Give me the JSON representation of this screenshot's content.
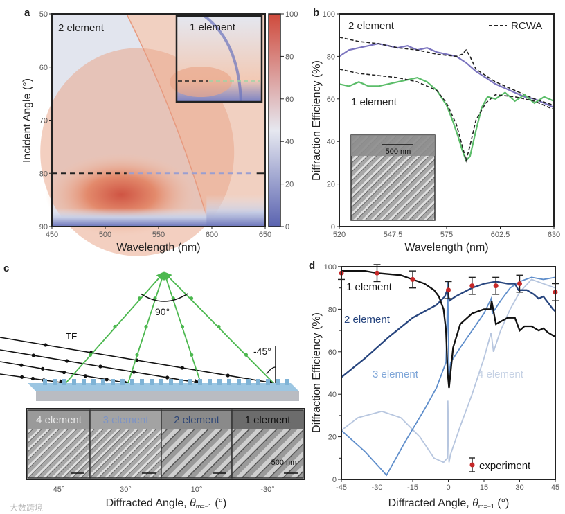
{
  "watermark": "大数跨境",
  "chart_data": [
    {
      "panel": "a",
      "type": "heatmap",
      "xlabel": "Wavelength (nm)",
      "ylabel": "Incident Angle (°)",
      "xlim": [
        450,
        650
      ],
      "ylim": [
        50,
        90
      ],
      "xticks": [
        "450",
        "500",
        "550",
        "600",
        "650"
      ],
      "yticks": [
        "50",
        "60",
        "70",
        "80",
        "90"
      ],
      "colorbar": {
        "range": [
          0,
          100
        ],
        "ticks": [
          "0",
          "20",
          "40",
          "60",
          "80",
          "100"
        ],
        "colors": [
          "#5a63b0",
          "#e6e8f0",
          "#cf4a3c"
        ]
      },
      "annotations": [
        "2 element",
        "1 element"
      ],
      "dashed_line_angle": 80,
      "peak": {
        "wavelength": 515,
        "angle": 84,
        "value": 90
      }
    },
    {
      "panel": "b",
      "type": "line",
      "xlabel": "Wavelength (nm)",
      "ylabel": "Diffraction Efficiency (%)",
      "xlim": [
        520,
        630
      ],
      "ylim": [
        0,
        100
      ],
      "xticks": [
        "520",
        "547.5",
        "575",
        "602.5",
        "630"
      ],
      "yticks": [
        "0",
        "20",
        "40",
        "60",
        "80",
        "100"
      ],
      "legend": "RCWA",
      "annotations": [
        "2 element",
        "1 element"
      ],
      "inset_scale": "500 nm",
      "series": [
        {
          "name": "2 element",
          "color": "#7b74bf",
          "x": [
            520,
            525,
            530,
            535,
            540,
            545,
            550,
            555,
            560,
            565,
            570,
            575,
            580,
            585,
            590,
            595,
            600,
            605,
            610,
            615,
            620,
            625,
            630
          ],
          "y": [
            80,
            83,
            84,
            85,
            86,
            85,
            84,
            85,
            83,
            84,
            82,
            81,
            80,
            77,
            73,
            70,
            67,
            65,
            63,
            61,
            60,
            58,
            56
          ]
        },
        {
          "name": "2 element RCWA",
          "color": "#222222",
          "dashed": true,
          "x": [
            520,
            530,
            540,
            550,
            560,
            570,
            580,
            583,
            585,
            587,
            590,
            600,
            610,
            620,
            630
          ],
          "y": [
            89,
            87,
            86,
            84,
            83,
            81,
            80,
            81,
            83,
            80,
            74,
            68,
            64,
            60,
            57
          ]
        },
        {
          "name": "1 element",
          "color": "#5cbd6a",
          "x": [
            520,
            525,
            530,
            535,
            540,
            545,
            550,
            555,
            560,
            565,
            570,
            575,
            578,
            581,
            583,
            585,
            587,
            590,
            593,
            596,
            600,
            605,
            610,
            615,
            620,
            625,
            630
          ],
          "y": [
            67,
            66,
            68,
            66,
            66,
            67,
            68,
            69,
            70,
            68,
            64,
            57,
            50,
            42,
            36,
            31,
            33,
            45,
            56,
            61,
            60,
            63,
            59,
            62,
            58,
            61,
            59
          ]
        },
        {
          "name": "1 element RCWA",
          "color": "#222222",
          "dashed": true,
          "x": [
            520,
            530,
            540,
            550,
            560,
            570,
            575,
            580,
            583,
            585,
            587,
            590,
            595,
            600,
            610,
            620,
            630
          ],
          "y": [
            74,
            72,
            71,
            70,
            68,
            64,
            58,
            48,
            38,
            31,
            38,
            50,
            58,
            62,
            61,
            59,
            55
          ]
        }
      ]
    },
    {
      "panel": "c",
      "type": "diagram",
      "labels": {
        "polarization": "TE",
        "apex_angle": "90°",
        "incident_angle": "-45°",
        "xlabel_prefix": "Diffracted Angle, ",
        "xlabel_symbol": "θ",
        "xlabel_sub": "m=−1",
        "xlabel_suffix": " (°)"
      },
      "sem_images": [
        {
          "label": "4 element",
          "angle": "45°"
        },
        {
          "label": "3 element",
          "angle": "30°"
        },
        {
          "label": "2 element",
          "angle": "10°"
        },
        {
          "label": "1 element",
          "angle": "-30°"
        }
      ],
      "scale_bar": "500 nm"
    },
    {
      "panel": "d",
      "type": "line",
      "xlabel_prefix": "Diffracted Angle, ",
      "xlabel_symbol": "θ",
      "xlabel_sub": "m=−1",
      "xlabel_suffix": " (°)",
      "ylabel": "Diffraction Efficiency (%)",
      "xlim": [
        -45,
        45
      ],
      "ylim": [
        0,
        100
      ],
      "xticks": [
        "-45",
        "-30",
        "-15",
        "0",
        "15",
        "30",
        "45"
      ],
      "yticks": [
        "0",
        "20",
        "40",
        "60",
        "80",
        "100"
      ],
      "legend": "experiment",
      "series": [
        {
          "name": "1 element",
          "color": "#111111",
          "x": [
            -45,
            -35,
            -30,
            -20,
            -15,
            -10,
            -6,
            -4,
            -2,
            -1,
            -0.3,
            0.3,
            2,
            5,
            10,
            15,
            17.8,
            18.2,
            20,
            25,
            28,
            30,
            32,
            35,
            38,
            40,
            42,
            45
          ],
          "y": [
            98,
            98,
            97,
            96,
            94,
            92,
            89,
            86,
            80,
            70,
            50,
            43,
            62,
            73,
            78,
            80,
            80,
            84,
            73,
            76,
            76,
            70,
            72,
            72,
            70,
            71,
            69,
            67
          ]
        },
        {
          "name": "2 element",
          "color": "#27457e",
          "x": [
            -45,
            -35,
            -25,
            -15,
            -5,
            -1.5,
            -0.5,
            0.5,
            3,
            10,
            15,
            20,
            25,
            28,
            29.5,
            30.5,
            33,
            36,
            38,
            40,
            42,
            44,
            45
          ],
          "y": [
            48,
            57,
            67,
            76,
            82,
            86,
            89,
            84,
            86,
            90,
            92,
            93,
            92,
            92,
            89,
            89,
            89,
            87,
            85,
            86,
            83,
            80,
            79
          ]
        },
        {
          "name": "3 element",
          "color": "#5f8ecb",
          "x": [
            -45,
            -35,
            -26,
            -18,
            -10,
            -5,
            -2,
            -1,
            -0.6,
            -0.3,
            0.3,
            1,
            5,
            10,
            15,
            18,
            18.5,
            22,
            26,
            30,
            35,
            40,
            45
          ],
          "y": [
            23,
            13,
            2,
            18,
            33,
            43,
            52,
            55,
            70,
            93,
            48,
            55,
            62,
            70,
            78,
            85,
            78,
            84,
            90,
            93,
            95,
            94,
            95
          ]
        },
        {
          "name": "4 element",
          "color": "#b7c6df",
          "x": [
            -45,
            -38,
            -28,
            -20,
            -12,
            -6,
            -2,
            -0.4,
            -0.2,
            0.3,
            1,
            5,
            10,
            15,
            18,
            19,
            22,
            26,
            30,
            35,
            40,
            45
          ],
          "y": [
            23,
            29,
            32,
            29,
            20,
            10,
            8,
            10,
            37,
            8,
            12,
            25,
            40,
            57,
            69,
            60,
            70,
            80,
            88,
            94,
            92,
            90
          ]
        }
      ],
      "experiment": {
        "color": "#c62828",
        "x": [
          -45,
          -30,
          -15,
          0,
          10,
          20,
          30,
          45
        ],
        "y": [
          97,
          97,
          94,
          89,
          91,
          91,
          92,
          88
        ],
        "err": [
          3,
          4,
          4,
          4,
          4,
          4,
          4,
          4
        ]
      },
      "annotations": [
        "1 element",
        "2 element",
        "3 element",
        "4 element"
      ]
    }
  ]
}
